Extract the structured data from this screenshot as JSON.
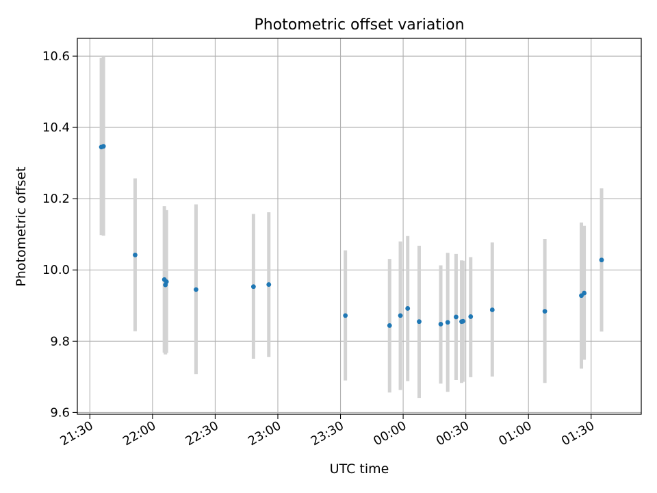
{
  "chart_data": {
    "type": "scatter",
    "title": "Photometric offset variation",
    "xlabel": "UTC time",
    "ylabel": "Photometric offset",
    "grid": true,
    "x_range": [
      "21:24",
      "01:54"
    ],
    "ylim": [
      9.595,
      10.65
    ],
    "x_ticks": [
      "21:30",
      "22:00",
      "22:30",
      "23:00",
      "23:30",
      "00:00",
      "00:30",
      "01:00",
      "01:30"
    ],
    "y_ticks": [
      "9.6",
      "9.8",
      "10.0",
      "10.2",
      "10.4",
      "10.6"
    ],
    "point_color": "#1f77b4",
    "error_bar_color": "#d3d3d3",
    "points": [
      {
        "x": "21:35:30",
        "y": 10.345,
        "err_low": 10.098,
        "err_high": 10.595
      },
      {
        "x": "21:36:30",
        "y": 10.347,
        "err_low": 10.096,
        "err_high": 10.598
      },
      {
        "x": "21:51:40",
        "y": 10.042,
        "err_low": 9.828,
        "err_high": 10.257
      },
      {
        "x": "22:05:40",
        "y": 9.973,
        "err_low": 9.768,
        "err_high": 10.179
      },
      {
        "x": "22:06:10",
        "y": 9.958,
        "err_low": 9.763,
        "err_high": 10.152
      },
      {
        "x": "22:06:40",
        "y": 9.967,
        "err_low": 9.767,
        "err_high": 10.168
      },
      {
        "x": "22:20:50",
        "y": 9.945,
        "err_low": 9.708,
        "err_high": 10.184
      },
      {
        "x": "22:48:20",
        "y": 9.953,
        "err_low": 9.751,
        "err_high": 10.157
      },
      {
        "x": "22:55:40",
        "y": 9.959,
        "err_low": 9.756,
        "err_high": 10.162
      },
      {
        "x": "23:32:20",
        "y": 9.872,
        "err_low": 9.69,
        "err_high": 10.055
      },
      {
        "x": "23:53:30",
        "y": 9.844,
        "err_low": 9.656,
        "err_high": 10.031
      },
      {
        "x": "23:58:40",
        "y": 9.872,
        "err_low": 9.663,
        "err_high": 10.08
      },
      {
        "x": "00:02:10",
        "y": 9.892,
        "err_low": 9.688,
        "err_high": 10.095
      },
      {
        "x": "00:07:40",
        "y": 9.855,
        "err_low": 9.641,
        "err_high": 10.068
      },
      {
        "x": "00:18:00",
        "y": 9.848,
        "err_low": 9.681,
        "err_high": 10.013
      },
      {
        "x": "00:21:20",
        "y": 9.853,
        "err_low": 9.658,
        "err_high": 10.048
      },
      {
        "x": "00:25:20",
        "y": 9.868,
        "err_low": 9.691,
        "err_high": 10.045
      },
      {
        "x": "00:28:00",
        "y": 9.855,
        "err_low": 9.683,
        "err_high": 10.027
      },
      {
        "x": "00:28:40",
        "y": 9.856,
        "err_low": 9.686,
        "err_high": 10.026
      },
      {
        "x": "00:32:20",
        "y": 9.869,
        "err_low": 9.699,
        "err_high": 10.036
      },
      {
        "x": "00:42:40",
        "y": 9.888,
        "err_low": 9.701,
        "err_high": 10.077
      },
      {
        "x": "01:07:50",
        "y": 9.884,
        "err_low": 9.683,
        "err_high": 10.087
      },
      {
        "x": "01:25:20",
        "y": 9.928,
        "err_low": 9.723,
        "err_high": 10.133
      },
      {
        "x": "01:26:40",
        "y": 9.935,
        "err_low": 9.748,
        "err_high": 10.124
      },
      {
        "x": "01:35:00",
        "y": 10.028,
        "err_low": 9.827,
        "err_high": 10.229
      }
    ]
  }
}
